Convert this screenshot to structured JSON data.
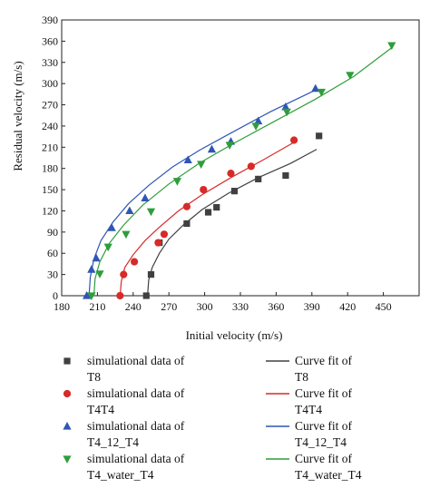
{
  "chart_data": {
    "type": "scatter",
    "title": "",
    "xlabel": "Initial velocity (m/s)",
    "ylabel": "Residual velocity (m/s)",
    "xlim": [
      180,
      480
    ],
    "ylim": [
      0,
      390
    ],
    "xticks": [
      180,
      210,
      240,
      270,
      300,
      330,
      360,
      390,
      420,
      450
    ],
    "yticks": [
      0,
      30,
      60,
      90,
      120,
      150,
      180,
      210,
      240,
      270,
      300,
      330,
      360,
      390
    ],
    "grid": false,
    "legend_position": "below plot",
    "colors": {
      "T8": "#404040",
      "T4T4": "#d62b28",
      "T4_12_T4": "#2f56b4",
      "T4_water_T4": "#2e9e3a"
    },
    "series": [
      {
        "key": "T8",
        "name": "simulational data of T8",
        "marker": "square",
        "points": [
          [
            251,
            0
          ],
          [
            255,
            30
          ],
          [
            262,
            75
          ],
          [
            285,
            102
          ],
          [
            303,
            118
          ],
          [
            310,
            125
          ],
          [
            325,
            148
          ],
          [
            345,
            165
          ],
          [
            368,
            170
          ],
          [
            396,
            226
          ]
        ],
        "fit_name": "Curve fit of T8",
        "fit": [
          [
            252,
            0
          ],
          [
            253,
            22
          ],
          [
            256,
            40
          ],
          [
            262,
            60
          ],
          [
            270,
            80
          ],
          [
            282,
            100
          ],
          [
            298,
            122
          ],
          [
            320,
            145
          ],
          [
            345,
            167
          ],
          [
            372,
            187
          ],
          [
            394,
            207
          ]
        ]
      },
      {
        "key": "T4T4",
        "name": "simulational data of T4T4",
        "marker": "circle",
        "points": [
          [
            229,
            0
          ],
          [
            232,
            30
          ],
          [
            241,
            48
          ],
          [
            261,
            75
          ],
          [
            266,
            87
          ],
          [
            285,
            126
          ],
          [
            299,
            150
          ],
          [
            322,
            173
          ],
          [
            339,
            183
          ],
          [
            375,
            220
          ]
        ],
        "fit_name": "Curve fit of T4T4",
        "fit": [
          [
            229,
            0
          ],
          [
            230,
            20
          ],
          [
            233,
            40
          ],
          [
            240,
            58
          ],
          [
            250,
            78
          ],
          [
            262,
            97
          ],
          [
            278,
            120
          ],
          [
            298,
            143
          ],
          [
            322,
            167
          ],
          [
            348,
            191
          ],
          [
            375,
            217
          ]
        ]
      },
      {
        "key": "T4_12_T4",
        "name": "simulational data of T4_12_T4",
        "marker": "triangle-up",
        "points": [
          [
            201,
            0
          ],
          [
            205,
            37
          ],
          [
            209,
            53
          ],
          [
            222,
            96
          ],
          [
            237,
            120
          ],
          [
            250,
            138
          ],
          [
            286,
            192
          ],
          [
            306,
            207
          ],
          [
            322,
            218
          ],
          [
            345,
            247
          ],
          [
            368,
            267
          ],
          [
            393,
            293
          ]
        ],
        "fit_name": "Curve fit of T4_12_T4",
        "fit": [
          [
            203,
            0
          ],
          [
            204,
            26
          ],
          [
            207,
            52
          ],
          [
            213,
            78
          ],
          [
            223,
            104
          ],
          [
            236,
            130
          ],
          [
            253,
            156
          ],
          [
            273,
            182
          ],
          [
            296,
            206
          ],
          [
            322,
            230
          ],
          [
            355,
            260
          ],
          [
            392,
            290
          ]
        ]
      },
      {
        "key": "T4_water_T4",
        "name": "simulational data of T4_water_T4",
        "marker": "triangle-down",
        "points": [
          [
            205,
            0
          ],
          [
            212,
            31
          ],
          [
            219,
            69
          ],
          [
            234,
            87
          ],
          [
            255,
            119
          ],
          [
            277,
            162
          ],
          [
            297,
            186
          ],
          [
            321,
            213
          ],
          [
            343,
            240
          ],
          [
            369,
            260
          ],
          [
            398,
            288
          ],
          [
            422,
            312
          ],
          [
            457,
            354
          ]
        ],
        "fit_name": "Curve fit of T4_water_T4",
        "fit": [
          [
            207,
            0
          ],
          [
            208,
            24
          ],
          [
            212,
            48
          ],
          [
            220,
            74
          ],
          [
            232,
            100
          ],
          [
            248,
            128
          ],
          [
            270,
            158
          ],
          [
            296,
            188
          ],
          [
            325,
            216
          ],
          [
            358,
            246
          ],
          [
            393,
            278
          ],
          [
            425,
            310
          ],
          [
            458,
            352
          ]
        ]
      }
    ]
  }
}
